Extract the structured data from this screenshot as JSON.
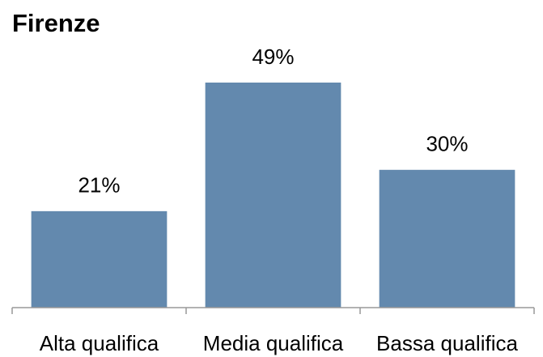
{
  "chart_data": {
    "type": "bar",
    "title": "Firenze",
    "categories": [
      "Alta qualifica",
      "Media qualifica",
      "Bassa qualifica"
    ],
    "values": [
      21,
      49,
      30
    ],
    "value_labels": [
      "21%",
      "49%",
      "30%"
    ],
    "color": "#6389ae",
    "grid": false
  }
}
